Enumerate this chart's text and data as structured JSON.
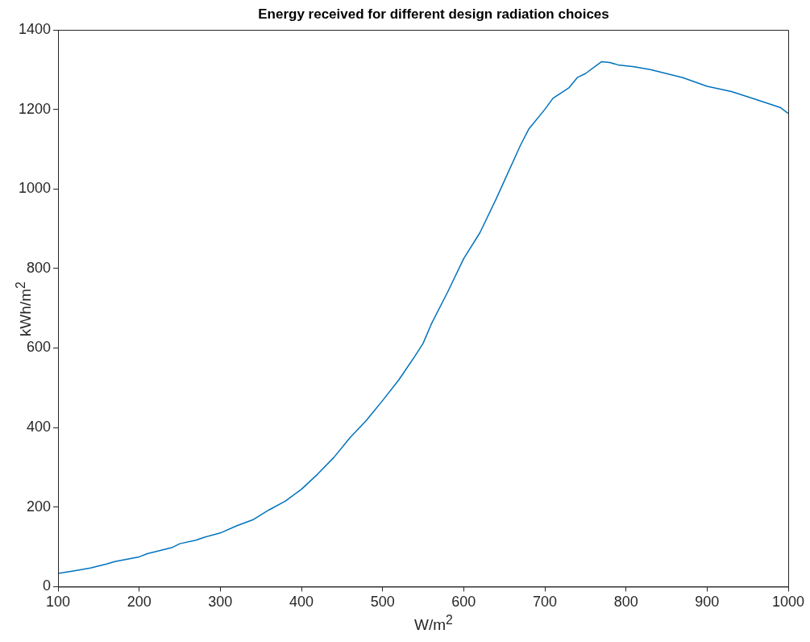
{
  "chart_data": {
    "type": "line",
    "title": "Energy received for different design radiation choices",
    "xlabel": "W/m$^{2}$",
    "ylabel": "kWh/m$^{2}$",
    "x": [
      100,
      120,
      140,
      160,
      170,
      200,
      210,
      240,
      250,
      270,
      280,
      300,
      320,
      340,
      360,
      380,
      400,
      420,
      440,
      460,
      480,
      500,
      520,
      540,
      550,
      560,
      580,
      600,
      620,
      640,
      650,
      670,
      680,
      700,
      710,
      730,
      740,
      750,
      770,
      780,
      790,
      810,
      830,
      850,
      870,
      900,
      930,
      960,
      990,
      1000
    ],
    "series": [
      {
        "color": "#0072bd",
        "values": [
          33,
          40,
          47,
          57,
          63,
          75,
          83,
          98,
          108,
          117,
          124,
          135,
          153,
          168,
          193,
          215,
          245,
          283,
          325,
          375,
          418,
          468,
          520,
          580,
          612,
          660,
          740,
          825,
          890,
          975,
          1020,
          1110,
          1150,
          1200,
          1228,
          1255,
          1280,
          1290,
          1320,
          1318,
          1312,
          1307,
          1300,
          1290,
          1280,
          1258,
          1245,
          1225,
          1205,
          1190
        ]
      }
    ],
    "xlim": [
      100,
      1000
    ],
    "xticks": [
      100,
      200,
      300,
      400,
      500,
      600,
      700,
      800,
      900,
      1000
    ],
    "ylim": [
      0,
      1400
    ],
    "yticks": [
      0,
      200,
      400,
      600,
      800,
      1000,
      1200,
      1400
    ],
    "grid": false,
    "legend": false,
    "marker": "none",
    "line_style": "solid"
  }
}
